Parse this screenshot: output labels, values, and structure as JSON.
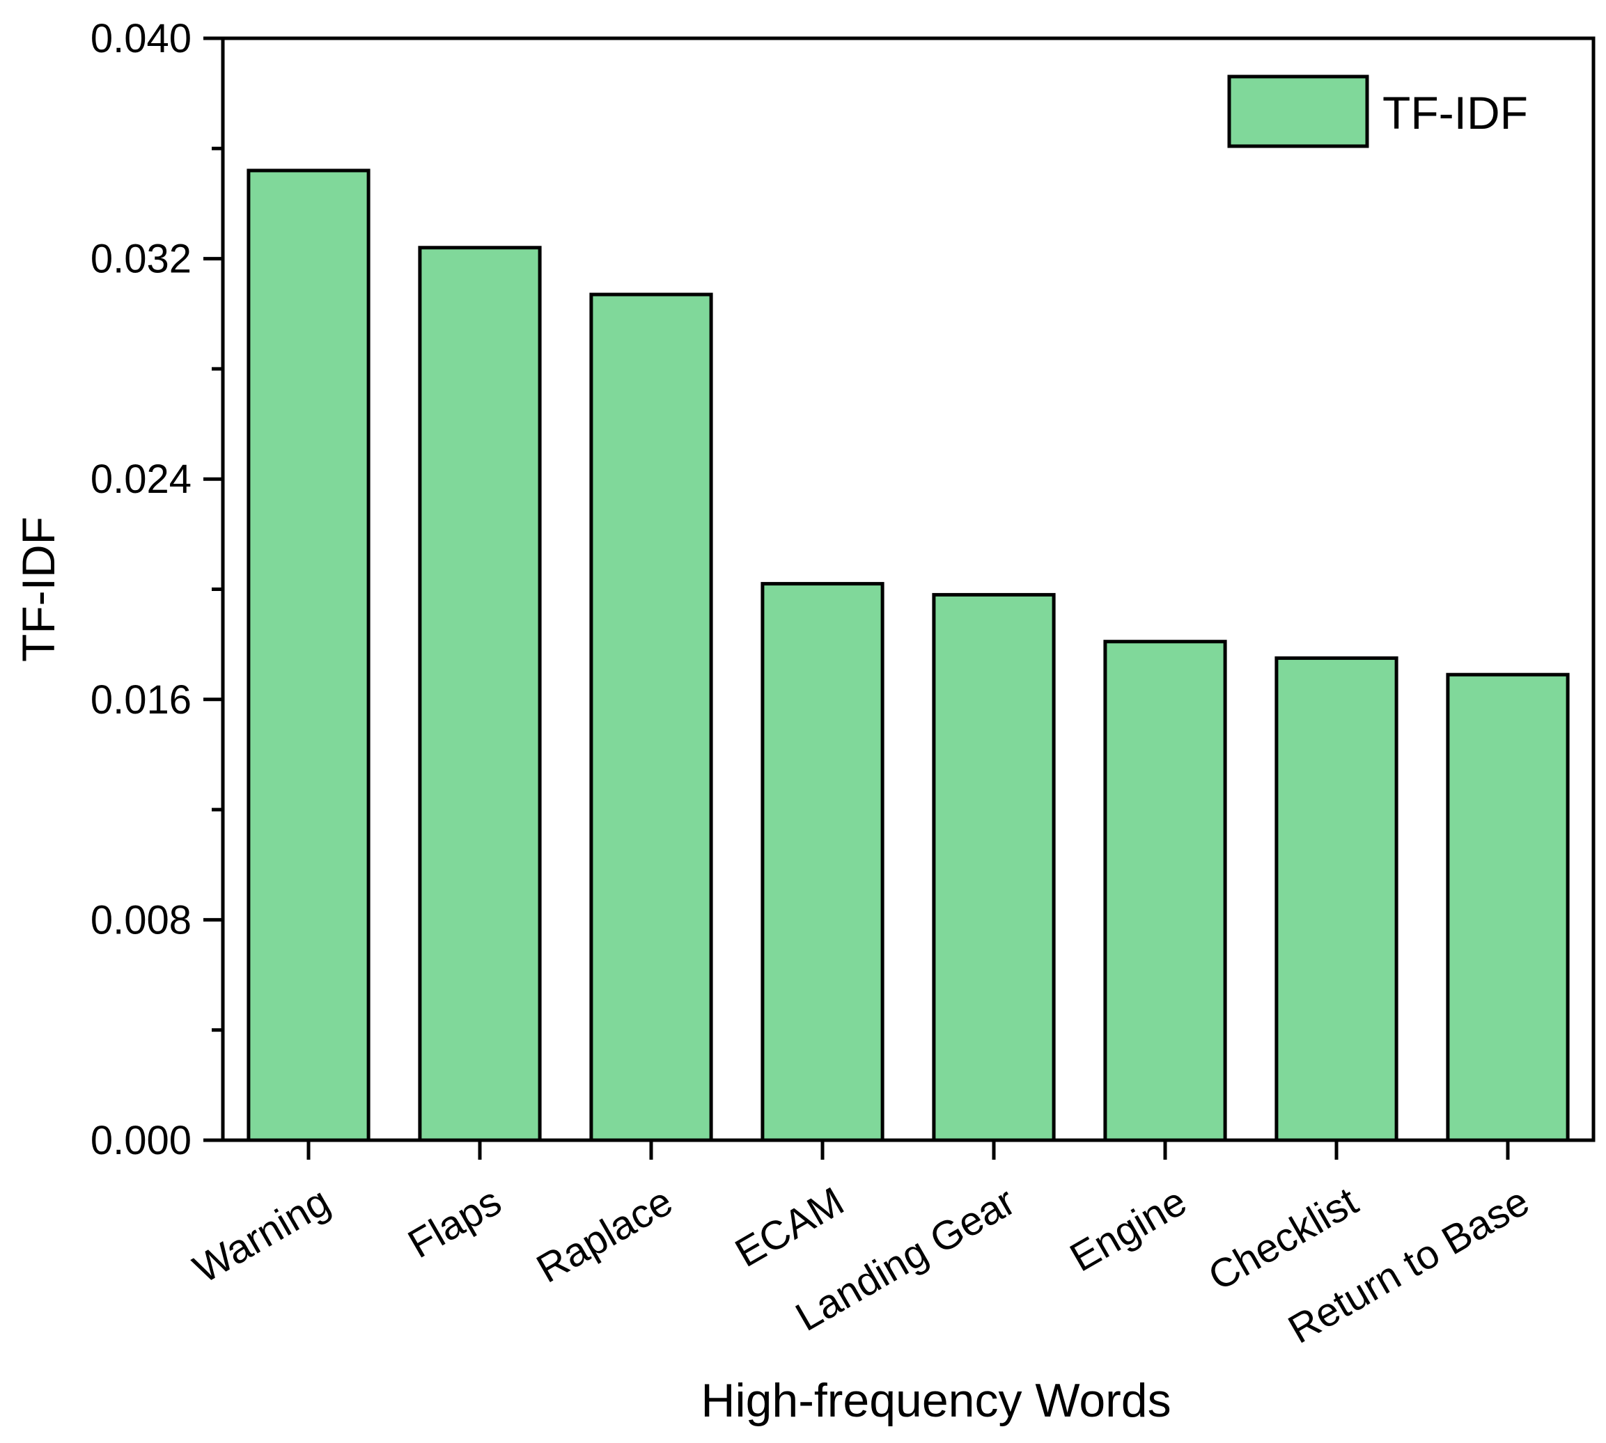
{
  "chart_data": {
    "type": "bar",
    "title": "",
    "xlabel": "High-frequency Words",
    "ylabel": "TF-IDF",
    "categories": [
      "Warning",
      "Flaps",
      "Raplace",
      "ECAM",
      "Landing Gear",
      "Engine",
      "Checklist",
      "Return to Base"
    ],
    "series": [
      {
        "name": "TF-IDF",
        "values": [
          0.0352,
          0.0324,
          0.0307,
          0.0202,
          0.0198,
          0.0181,
          0.0175,
          0.0169
        ],
        "color": "#80d89a"
      }
    ],
    "ylim": [
      0,
      0.04
    ],
    "yticks": [
      "0.000",
      "0.008",
      "0.016",
      "0.024",
      "0.032",
      "0.040"
    ],
    "grid": false,
    "legend_position": "top-right"
  }
}
